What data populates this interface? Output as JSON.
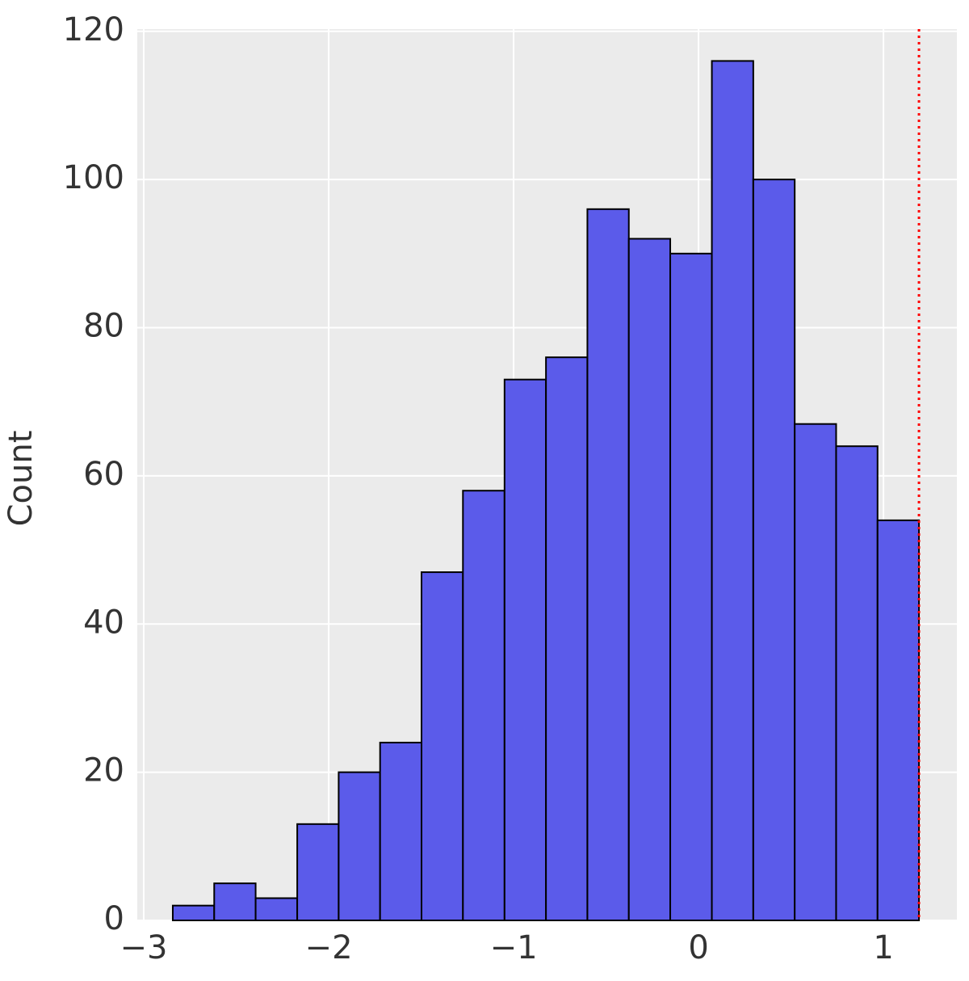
{
  "chart_data": {
    "type": "histogram",
    "ylabel": "Count",
    "bins": [
      -2.843,
      -2.619,
      -2.395,
      -2.17,
      -1.946,
      -1.722,
      -1.498,
      -1.274,
      -1.049,
      -0.825,
      -0.601,
      -0.377,
      -0.153,
      0.072,
      0.296,
      0.52,
      0.744,
      0.968,
      1.192
    ],
    "counts": [
      2,
      5,
      3,
      13,
      20,
      24,
      47,
      58,
      73,
      76,
      96,
      92,
      90,
      116,
      100,
      67,
      64,
      54
    ],
    "color": "#5b5bea",
    "edgecolor": "#000000",
    "xlim": [
      -3.035,
      1.397
    ],
    "xticks": [
      {
        "value": -3,
        "label": "−3"
      },
      {
        "value": -2,
        "label": "−2"
      },
      {
        "value": -1,
        "label": "−1"
      },
      0,
      1
    ],
    "ylim": [
      0,
      120.3
    ],
    "yticks": [
      0,
      20,
      40,
      60,
      80,
      100,
      120
    ],
    "grid": true,
    "vline": {
      "x": 1.192,
      "color": "#ff0000",
      "style": "dotted"
    }
  }
}
